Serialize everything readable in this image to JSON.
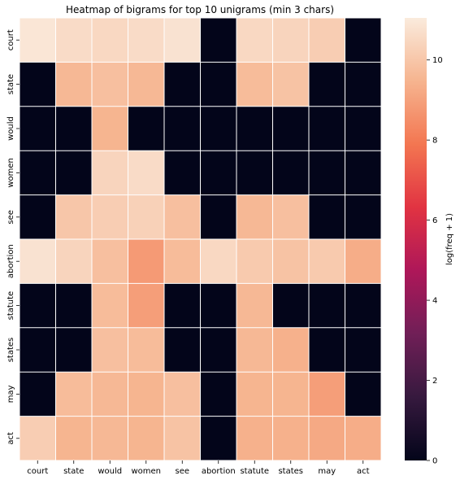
{
  "chart_data": {
    "type": "heatmap",
    "title": "Heatmap of bigrams for top 10 unigrams (min 3 chars)",
    "x_categories": [
      "court",
      "state",
      "would",
      "women",
      "see",
      "abortion",
      "statute",
      "states",
      "may",
      "act"
    ],
    "y_categories": [
      "court",
      "state",
      "would",
      "women",
      "see",
      "abortion",
      "statute",
      "states",
      "may",
      "act"
    ],
    "values": [
      [
        10.9,
        10.6,
        10.5,
        10.6,
        10.8,
        0,
        10.5,
        10.4,
        10.2,
        0
      ],
      [
        0,
        9.6,
        9.8,
        9.6,
        0,
        0,
        9.7,
        9.9,
        0,
        0
      ],
      [
        0,
        0,
        9.5,
        0,
        0,
        0,
        0,
        0,
        0,
        0
      ],
      [
        0,
        0,
        10.4,
        10.6,
        0,
        0,
        0,
        0,
        0,
        0
      ],
      [
        0,
        10.0,
        10.2,
        10.3,
        9.8,
        0,
        9.6,
        9.8,
        0,
        0
      ],
      [
        10.8,
        10.4,
        9.8,
        8.8,
        9.7,
        10.5,
        10.1,
        9.9,
        10.1,
        9.3
      ],
      [
        0,
        0,
        9.7,
        8.9,
        0,
        0,
        9.6,
        0,
        0,
        0
      ],
      [
        0,
        0,
        9.8,
        9.7,
        0,
        0,
        9.6,
        9.4,
        0,
        0
      ],
      [
        0,
        9.7,
        9.6,
        9.5,
        9.8,
        0,
        9.5,
        9.5,
        8.9,
        0
      ],
      [
        10.2,
        9.5,
        9.6,
        9.5,
        9.9,
        0,
        9.4,
        9.4,
        9.2,
        9.3
      ]
    ],
    "colorbar": {
      "label": "log(freq + 1)",
      "range": [
        0,
        11.05
      ],
      "ticks": [
        "0",
        "2",
        "4",
        "6",
        "8",
        "10"
      ],
      "colors": [
        "#03051a",
        "#36193e",
        "#701f57",
        "#ae1759",
        "#e13342",
        "#f37651",
        "#f6b48f",
        "#faebdd"
      ]
    },
    "grid_line_color": "#ffffff"
  }
}
